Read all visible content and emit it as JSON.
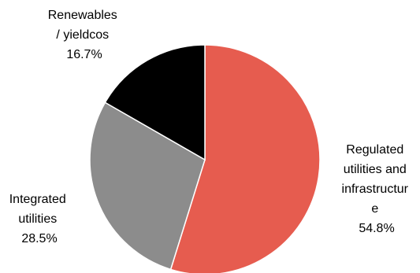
{
  "chart_data": {
    "type": "pie",
    "title": "",
    "slices": [
      {
        "label_lines": [
          "Regulated",
          "utilities and",
          "infrastructur",
          "e"
        ],
        "value": 54.8,
        "display": "54.8%",
        "color": "#E65C4F"
      },
      {
        "label_lines": [
          "Integrated",
          "utilities"
        ],
        "value": 28.5,
        "display": "28.5%",
        "color": "#8C8C8C"
      },
      {
        "label_lines": [
          "Renewables",
          "/ yieldcos"
        ],
        "value": 16.7,
        "display": "16.7%",
        "color": "#000000"
      }
    ],
    "start": "12 o'clock",
    "direction": "clockwise"
  }
}
